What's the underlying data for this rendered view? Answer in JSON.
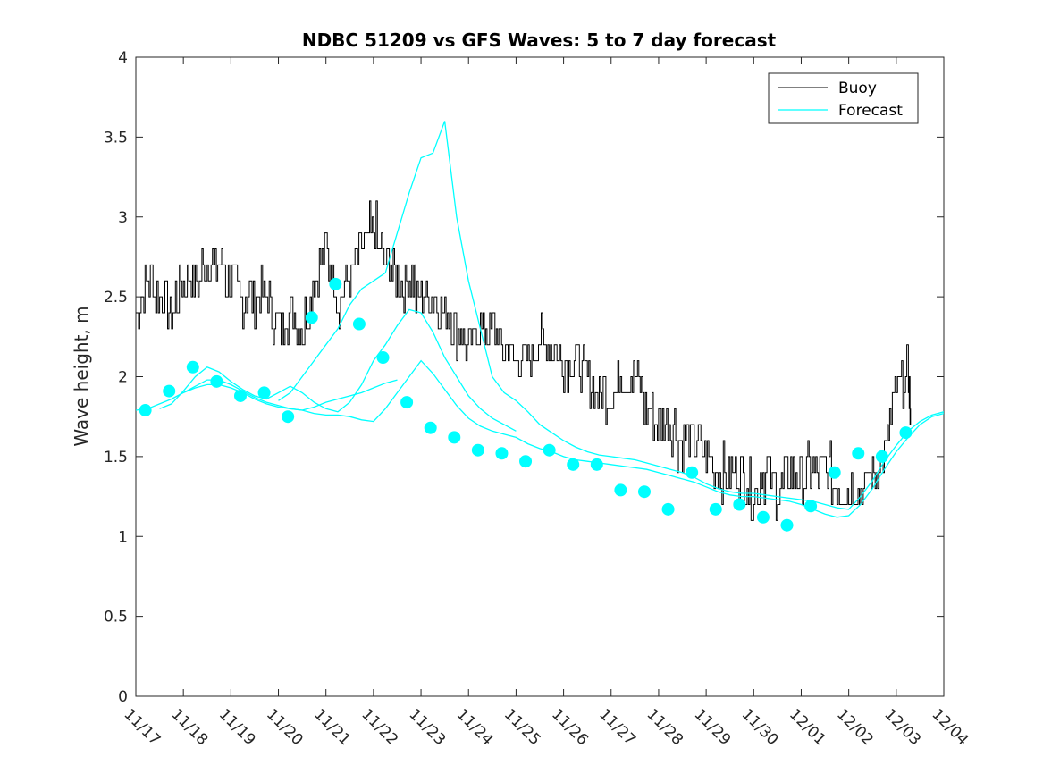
{
  "chart_data": {
    "type": "line",
    "title": "NDBC 51209 vs GFS Waves: 5 to 7 day forecast",
    "xlabel": "",
    "ylabel": "Wave height, m",
    "ylim": [
      0,
      4
    ],
    "yticks": [
      0,
      0.5,
      1,
      1.5,
      2,
      2.5,
      3,
      3.5,
      4
    ],
    "ytick_labels": [
      "0",
      "0.5",
      "1",
      "1.5",
      "2",
      "2.5",
      "3",
      "3.5",
      "4"
    ],
    "xlim": [
      0,
      17
    ],
    "x_unit": "days since 11/17",
    "xtick_labels": [
      "11/17",
      "11/18",
      "11/19",
      "11/20",
      "11/21",
      "11/22",
      "11/23",
      "11/24",
      "11/25",
      "11/26",
      "11/27",
      "11/28",
      "11/29",
      "11/30",
      "12/01",
      "12/02",
      "12/03",
      "12/04"
    ],
    "legend": {
      "position": "top-right",
      "entries": [
        "Buoy",
        "Forecast"
      ]
    },
    "colors": {
      "buoy": "#000000",
      "forecast": "#00ffff",
      "axes": "#262626"
    },
    "series": [
      {
        "name": "Buoy",
        "x": [
          0.0,
          0.25,
          0.5,
          0.75,
          1.0,
          1.25,
          1.5,
          1.75,
          2.0,
          2.25,
          2.5,
          2.75,
          3.0,
          3.25,
          3.5,
          3.75,
          4.0,
          4.25,
          4.5,
          4.75,
          5.0,
          5.25,
          5.5,
          5.75,
          6.0,
          6.25,
          6.5,
          6.75,
          7.0,
          7.25,
          7.5,
          7.75,
          8.0,
          8.25,
          8.5,
          8.75,
          9.0,
          9.25,
          9.5,
          9.75,
          10.0,
          10.25,
          10.5,
          10.75,
          11.0,
          11.25,
          11.5,
          11.75,
          12.0,
          12.25,
          12.5,
          12.75,
          13.0,
          13.25,
          13.5,
          13.75,
          14.0,
          14.25,
          14.5,
          14.75,
          15.0,
          15.25,
          15.5,
          15.75,
          16.0,
          16.25,
          16.3
        ],
        "y": [
          2.4,
          2.6,
          2.5,
          2.4,
          2.6,
          2.6,
          2.7,
          2.7,
          2.6,
          2.5,
          2.5,
          2.5,
          2.3,
          2.4,
          2.3,
          2.6,
          2.8,
          2.5,
          2.6,
          2.8,
          2.9,
          2.7,
          2.6,
          2.6,
          2.5,
          2.5,
          2.4,
          2.3,
          2.2,
          2.3,
          2.3,
          2.2,
          2.1,
          2.1,
          2.2,
          2.2,
          2.1,
          2.1,
          2.0,
          1.9,
          1.9,
          2.0,
          2.0,
          1.8,
          1.7,
          1.7,
          1.6,
          1.6,
          1.5,
          1.4,
          1.4,
          1.4,
          1.3,
          1.4,
          1.3,
          1.4,
          1.4,
          1.4,
          1.4,
          1.3,
          1.3,
          1.3,
          1.4,
          1.5,
          1.9,
          2.0,
          1.8
        ]
      },
      {
        "name": "Forecast",
        "segments": [
          {
            "x": [
              0.0,
              0.25,
              0.5,
              0.75,
              1.0,
              1.25,
              1.5,
              1.75,
              2.0,
              2.25,
              2.5,
              2.75,
              3.0,
              3.25,
              3.5,
              3.75,
              4.0,
              4.25,
              4.5,
              4.75,
              5.0,
              5.25,
              5.5
            ],
            "y": [
              1.79,
              1.8,
              1.83,
              1.86,
              1.9,
              1.93,
              1.95,
              1.95,
              1.93,
              1.9,
              1.86,
              1.83,
              1.81,
              1.8,
              1.79,
              1.81,
              1.84,
              1.86,
              1.88,
              1.9,
              1.93,
              1.96,
              1.98
            ]
          },
          {
            "x": [
              0.5,
              0.75,
              1.0,
              1.25,
              1.5,
              1.75,
              2.0,
              2.25,
              2.5,
              2.75,
              3.0,
              3.25,
              3.5,
              3.75,
              4.0,
              4.25,
              4.5,
              4.75,
              5.0,
              5.25,
              5.5,
              5.75,
              6.0,
              6.25,
              6.5,
              6.75,
              7.0,
              7.25,
              7.5,
              7.75,
              8.0
            ],
            "y": [
              1.8,
              1.83,
              1.91,
              2.0,
              2.06,
              2.03,
              1.97,
              1.92,
              1.88,
              1.86,
              1.9,
              1.94,
              1.9,
              1.84,
              1.8,
              1.78,
              1.84,
              1.95,
              2.1,
              2.2,
              2.32,
              2.42,
              2.4,
              2.28,
              2.12,
              2.0,
              1.88,
              1.8,
              1.74,
              1.7,
              1.66
            ]
          },
          {
            "x": [
              1.0,
              1.25,
              1.5,
              1.75,
              2.0,
              2.25,
              2.5,
              2.75,
              3.0,
              3.25,
              3.5,
              3.75,
              4.0,
              4.25,
              4.5,
              4.75,
              5.0,
              5.25,
              5.5,
              5.75,
              6.0,
              6.25,
              6.5,
              6.75,
              7.0,
              7.25,
              7.5,
              7.75,
              8.0,
              8.25,
              8.5,
              8.75,
              9.0,
              9.25,
              9.5,
              9.75,
              10.0,
              10.25,
              10.5,
              10.75,
              11.0,
              11.25,
              11.5,
              11.75,
              12.0,
              12.25,
              12.5,
              12.75,
              13.0,
              13.25,
              13.5,
              13.75,
              14.0,
              14.25,
              14.5,
              14.75,
              15.0,
              15.25,
              15.5,
              15.75,
              16.0,
              16.25,
              16.5,
              16.75,
              17.0
            ],
            "y": [
              1.9,
              1.94,
              1.98,
              1.98,
              1.95,
              1.91,
              1.87,
              1.84,
              1.82,
              1.8,
              1.79,
              1.77,
              1.76,
              1.76,
              1.75,
              1.73,
              1.72,
              1.8,
              1.9,
              2.0,
              2.1,
              2.02,
              1.92,
              1.82,
              1.74,
              1.69,
              1.66,
              1.64,
              1.62,
              1.58,
              1.55,
              1.53,
              1.5,
              1.48,
              1.47,
              1.46,
              1.45,
              1.44,
              1.43,
              1.42,
              1.4,
              1.38,
              1.36,
              1.34,
              1.31,
              1.28,
              1.26,
              1.25,
              1.25,
              1.24,
              1.23,
              1.22,
              1.2,
              1.17,
              1.14,
              1.12,
              1.13,
              1.2,
              1.3,
              1.42,
              1.53,
              1.62,
              1.7,
              1.75,
              1.77
            ]
          },
          {
            "x": [
              3.0,
              3.25,
              3.5,
              3.75,
              4.0,
              4.25,
              4.5,
              4.75,
              5.0,
              5.25,
              5.5,
              5.75,
              6.0,
              6.25,
              6.5,
              6.75,
              7.0,
              7.25,
              7.5,
              7.75,
              8.0,
              8.25,
              8.5,
              8.75,
              9.0,
              9.25,
              9.5,
              9.75,
              10.0,
              10.25,
              10.5,
              10.75,
              11.0,
              11.25,
              11.5,
              11.75,
              12.0,
              12.25,
              12.5,
              12.75,
              13.0,
              13.25,
              13.5,
              13.75,
              14.0,
              14.25,
              14.5,
              14.75,
              15.0,
              15.25,
              15.5,
              15.75,
              16.0,
              16.25,
              16.5,
              16.75,
              17.0
            ],
            "y": [
              1.85,
              1.9,
              2.0,
              2.1,
              2.2,
              2.3,
              2.45,
              2.55,
              2.6,
              2.65,
              2.9,
              3.15,
              3.37,
              3.4,
              3.6,
              3.0,
              2.6,
              2.3,
              2.0,
              1.9,
              1.85,
              1.78,
              1.7,
              1.65,
              1.6,
              1.56,
              1.53,
              1.51,
              1.5,
              1.49,
              1.48,
              1.46,
              1.44,
              1.42,
              1.4,
              1.37,
              1.33,
              1.3,
              1.28,
              1.27,
              1.27,
              1.26,
              1.25,
              1.24,
              1.23,
              1.22,
              1.2,
              1.18,
              1.17,
              1.25,
              1.35,
              1.47,
              1.57,
              1.66,
              1.72,
              1.76,
              1.78
            ]
          }
        ],
        "markers": {
          "x": [
            0.2,
            1.2,
            2.2,
            3.2,
            4.2,
            5.2,
            6.2,
            7.2,
            8.2,
            9.2,
            10.2,
            11.2,
            12.2,
            13.2,
            14.2,
            15.2,
            16.2,
            0.7,
            1.7,
            2.7,
            3.7,
            4.7,
            5.7,
            6.7,
            7.7,
            8.7,
            9.7,
            10.7,
            11.7,
            12.7,
            13.7,
            14.7,
            15.7
          ],
          "y": [
            1.79,
            2.06,
            1.88,
            1.75,
            2.58,
            2.12,
            1.68,
            1.54,
            1.47,
            1.45,
            1.29,
            1.17,
            1.17,
            1.12,
            1.19,
            1.52,
            1.65,
            1.91,
            1.97,
            1.9,
            2.37,
            2.33,
            1.84,
            1.62,
            1.52,
            1.54,
            1.45,
            1.28,
            1.4,
            1.2,
            1.07,
            1.4,
            1.5
          ]
        }
      }
    ]
  }
}
